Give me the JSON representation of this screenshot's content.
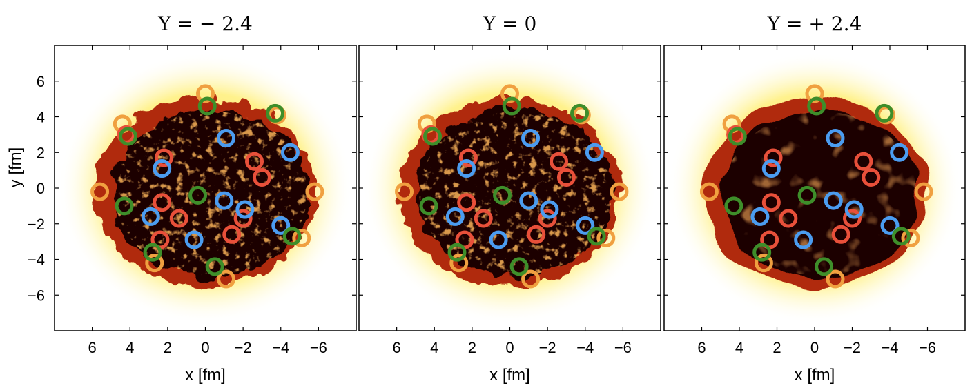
{
  "figure": {
    "panels": [
      {
        "title": "Y = − 2.4",
        "xlabel": "x [fm]",
        "ylabel": "y [fm]"
      },
      {
        "title": "Y = 0",
        "xlabel": "x [fm]",
        "ylabel": ""
      },
      {
        "title": "Y = + 2.4",
        "xlabel": "x [fm]",
        "ylabel": ""
      }
    ],
    "x_ticks": [
      6,
      4,
      2,
      0,
      -2,
      -4,
      -6
    ],
    "x_tick_labels": [
      "6",
      "4",
      "2",
      "0",
      "−2",
      "−4",
      "−6"
    ],
    "y_ticks": [
      6,
      4,
      2,
      0,
      -2,
      -4,
      -6
    ],
    "y_tick_labels": [
      "6",
      "4",
      "2",
      "0",
      "−2",
      "−4",
      "−6"
    ],
    "x_range": [
      8,
      -8
    ],
    "y_range": [
      -8,
      8
    ],
    "colors": {
      "orange": "#f0a040",
      "red": "#e8503a",
      "blue": "#4b9cf0",
      "green": "#3e8e2a",
      "hot_dark": "#1a0604",
      "hot_mid": "#b02a10",
      "hot_light": "#ffec70"
    },
    "rings": {
      "orange": [
        [
          0,
          5.3
        ],
        [
          4.4,
          3.6
        ],
        [
          5.6,
          -0.2
        ],
        [
          -5.8,
          -0.2
        ],
        [
          -3.8,
          4.1
        ],
        [
          -5.1,
          -2.8
        ],
        [
          -1.1,
          -5.1
        ],
        [
          2.7,
          -4.2
        ]
      ],
      "red": [
        [
          4.2,
          3.0
        ],
        [
          2.2,
          1.7
        ],
        [
          2.3,
          -0.8
        ],
        [
          1.4,
          -1.7
        ],
        [
          2.4,
          -2.9
        ],
        [
          -1.4,
          -2.6
        ],
        [
          -2.6,
          1.5
        ],
        [
          -3.0,
          0.6
        ],
        [
          -2.0,
          -1.7
        ]
      ],
      "blue": [
        [
          -1.1,
          2.8
        ],
        [
          2.3,
          1.1
        ],
        [
          -4.5,
          2.0
        ],
        [
          -1.0,
          -0.7
        ],
        [
          -2.1,
          -1.2
        ],
        [
          -4.0,
          -2.1
        ],
        [
          2.9,
          -1.6
        ],
        [
          0.6,
          -2.9
        ]
      ],
      "green": [
        [
          -0.1,
          4.6
        ],
        [
          -3.7,
          4.2
        ],
        [
          4.1,
          2.9
        ],
        [
          0.4,
          -0.4
        ],
        [
          4.3,
          -1.0
        ],
        [
          -4.6,
          -2.7
        ],
        [
          2.8,
          -3.6
        ],
        [
          -0.5,
          -4.4
        ]
      ]
    }
  }
}
